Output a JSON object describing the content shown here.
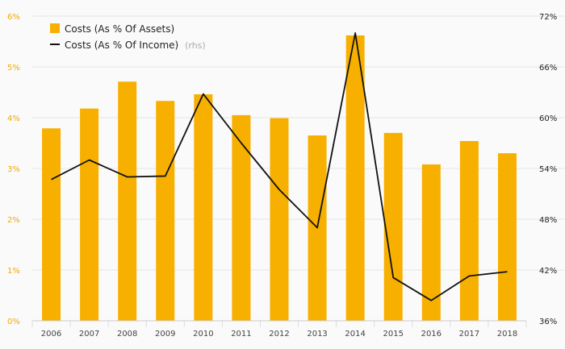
{
  "chart_data": {
    "type": "bar",
    "categories": [
      "2006",
      "2007",
      "2008",
      "2009",
      "2010",
      "2011",
      "2012",
      "2013",
      "2014",
      "2015",
      "2016",
      "2017",
      "2018"
    ],
    "series": [
      {
        "name": "Costs (As % Of Assets)",
        "type": "bar",
        "axis": "left",
        "color": "#f8b000",
        "values": [
          3.79,
          4.18,
          4.71,
          4.33,
          4.46,
          4.05,
          3.99,
          3.65,
          5.62,
          3.7,
          3.08,
          3.54,
          3.3
        ]
      },
      {
        "name": "Costs (As % Of Income)",
        "type": "line",
        "axis": "right",
        "color": "#111111",
        "values": [
          52.7,
          55.0,
          53.0,
          53.1,
          62.8,
          57.0,
          51.5,
          47.0,
          70.0,
          41.1,
          38.4,
          41.3,
          41.8
        ]
      }
    ],
    "yleft": {
      "min": 0,
      "max": 6,
      "ticks": [
        "0%",
        "1%",
        "2%",
        "3%",
        "4%",
        "5%",
        "6%"
      ]
    },
    "yright": {
      "min": 36,
      "max": 72,
      "ticks": [
        "36%",
        "42%",
        "48%",
        "54%",
        "60%",
        "66%",
        "72%"
      ]
    },
    "legend": {
      "placement": "top-left",
      "items": [
        {
          "label": "Costs (As % Of Assets)",
          "suffix": ""
        },
        {
          "label": "Costs (As % Of Income)",
          "suffix": "(rhs)"
        }
      ]
    },
    "grid": true
  }
}
